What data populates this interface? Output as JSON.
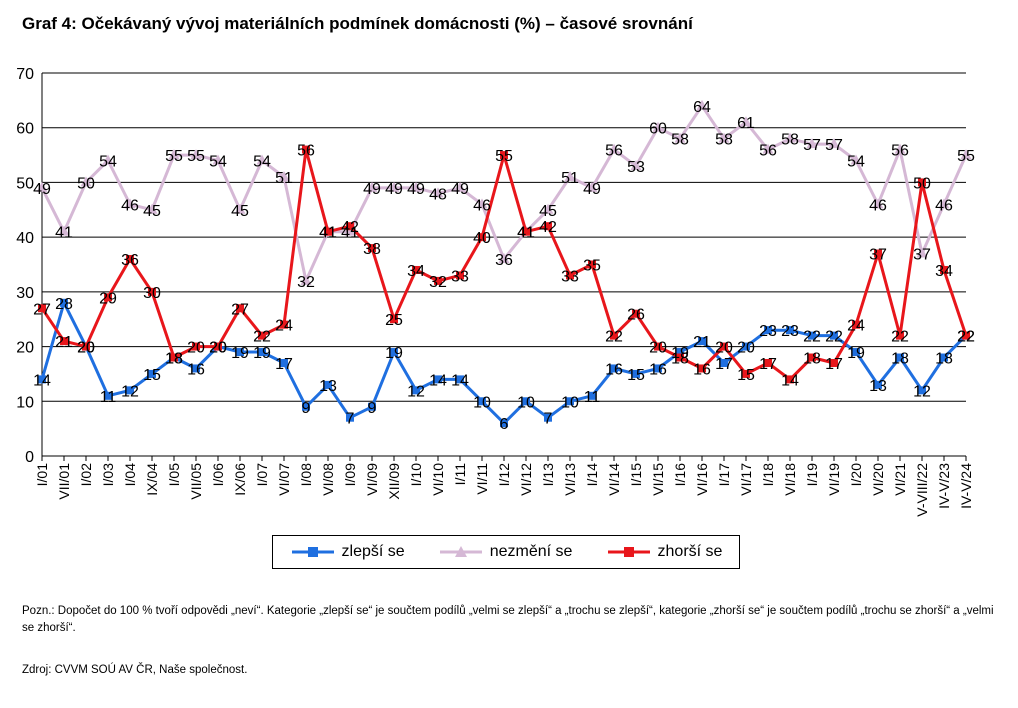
{
  "title": "Graf 4: Očekávaný vývoj materiálních podmínek domácnosti (%) – časové srovnání",
  "note": "Pozn.: Dopočet do 100 % tvoří odpovědi „neví“. Kategorie „zlepší se“ je součtem podílů „velmi se zlepší“ a „trochu se zlepší“, kategorie „zhorší se“ je součtem podílů „trochu se zhorší“ a „velmi se zhorší“.",
  "source": "Zdroj: CVVM SOÚ AV ČR, Naše společnost.",
  "chart_data": {
    "type": "line",
    "categories": [
      "I/01",
      "VII/01",
      "I/02",
      "I/03",
      "I/04",
      "IX/04",
      "I/05",
      "VII/05",
      "I/06",
      "IX/06",
      "I/07",
      "VI/07",
      "I/08",
      "VI/08",
      "I/09",
      "VI/09",
      "XII/09",
      "I/10",
      "VI/10",
      "I/11",
      "VI/11",
      "I/12",
      "VI/12",
      "I/13",
      "VI/13",
      "I/14",
      "VI/14",
      "I/15",
      "VI/15",
      "I/16",
      "VI/16",
      "I/17",
      "VI/17",
      "I/18",
      "VI/18",
      "I/19",
      "VI/19",
      "I/20",
      "VI/20",
      "VI/21",
      "V-VIII/22",
      "IV-V/23",
      "IV-V/24"
    ],
    "category_labels": [
      "I/01",
      "VII/01",
      "I/02",
      "I/03",
      "I/04",
      "IX/04",
      "I/05",
      "VII/05",
      "I/06",
      "IX/06",
      "I/07",
      "VI/07",
      "I/08",
      "VI/08",
      "I/09",
      "VI/09",
      "XII/09",
      "I/10",
      "VI/10",
      "I/11",
      "VI/11",
      "I/12",
      "VI/12",
      "I/13",
      "VI/13",
      "I/14",
      "VI/14",
      "I/15",
      "VI/15",
      "I/16",
      "VI/16",
      "I/17",
      "VI/17",
      "I/18",
      "VI/18",
      "I/19",
      "VI/19",
      "I/20",
      "VI/20",
      "VI/21",
      "V-VIII/22",
      "IV-V/23",
      "IV-V/24"
    ],
    "series": [
      {
        "name": "zlepší se",
        "color": "#1f6fe0",
        "marker": "square",
        "values": [
          14,
          28,
          20,
          11,
          12,
          15,
          18,
          16,
          20,
          19,
          19,
          17,
          9,
          13,
          7,
          9,
          19,
          12,
          14,
          14,
          10,
          6,
          10,
          7,
          10,
          11,
          16,
          15,
          16,
          19,
          21,
          17,
          20,
          23,
          23,
          22,
          22,
          19,
          13,
          18,
          12,
          18,
          22
        ]
      },
      {
        "name": "nezmění se",
        "color": "#d5b8d5",
        "marker": "triangle",
        "values": [
          49,
          41,
          50,
          54,
          46,
          45,
          55,
          55,
          54,
          45,
          54,
          51,
          32,
          41,
          41,
          49,
          49,
          49,
          48,
          49,
          46,
          36,
          41,
          45,
          51,
          49,
          56,
          53,
          60,
          58,
          64,
          58,
          61,
          56,
          58,
          57,
          57,
          54,
          46,
          56,
          37,
          46,
          55
        ]
      },
      {
        "name": "zhorší se",
        "color": "#e8161b",
        "marker": "square",
        "values": [
          27,
          21,
          20,
          29,
          36,
          30,
          18,
          20,
          20,
          27,
          22,
          24,
          56,
          41,
          42,
          38,
          25,
          34,
          32,
          33,
          40,
          55,
          41,
          42,
          33,
          35,
          22,
          26,
          20,
          18,
          16,
          20,
          15,
          17,
          14,
          18,
          17,
          24,
          37,
          22,
          50,
          34,
          22
        ]
      }
    ],
    "ylim": [
      0,
      70
    ],
    "yticks": [
      0,
      10,
      20,
      30,
      40,
      50,
      60,
      70
    ],
    "grid": true,
    "legend": "bottom"
  }
}
